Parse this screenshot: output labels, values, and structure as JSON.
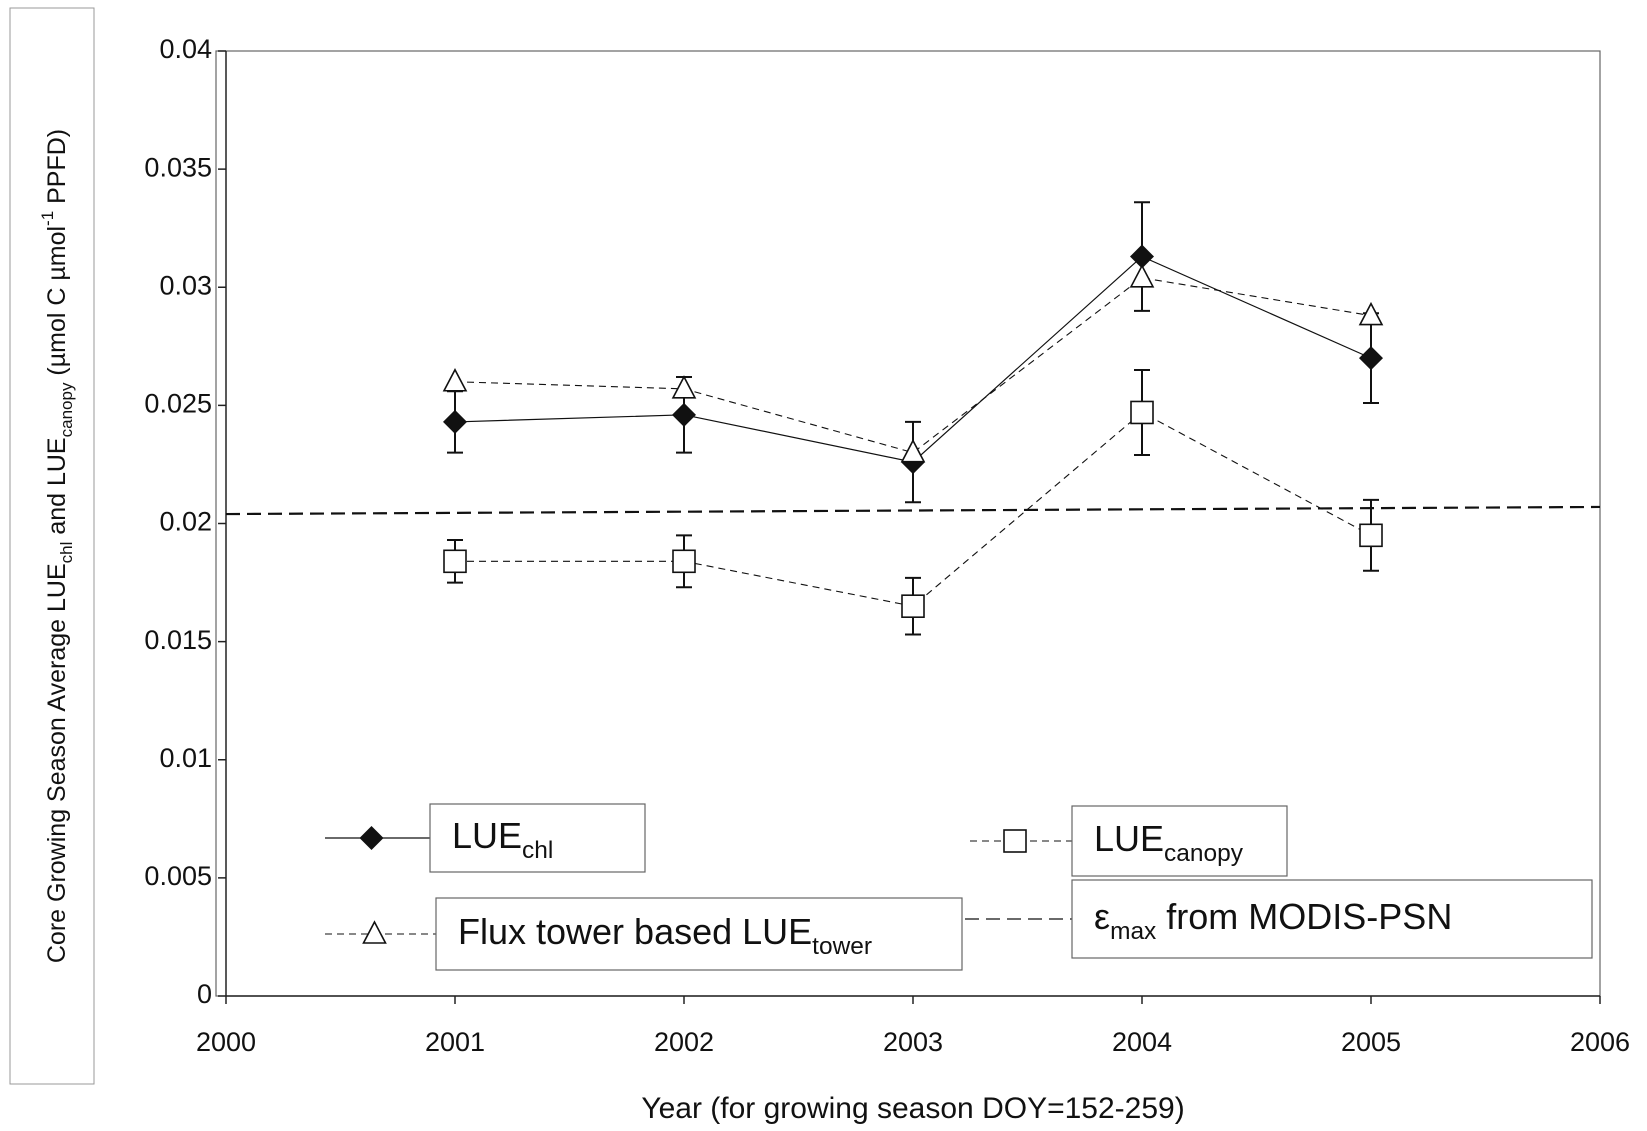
{
  "chart_data": {
    "type": "line",
    "xlabel": "Year (for growing season DOY=152-259)",
    "ylabel_parts": [
      "Core Growing Season Average LUE",
      "chl",
      " and LUE",
      "canopy",
      " (µmol C µmol",
      "-1",
      " PPFD)"
    ],
    "ylabel_styles": [
      "normal",
      "sub",
      "normal",
      "sub",
      "normal",
      "sup",
      "normal"
    ],
    "xlim": [
      2000,
      2006
    ],
    "xticks": [
      2000,
      2001,
      2002,
      2003,
      2004,
      2005,
      2006
    ],
    "ylim": [
      0,
      0.04
    ],
    "yticks": [
      0,
      0.005,
      0.01,
      0.015,
      0.02,
      0.025,
      0.03,
      0.035,
      0.04
    ],
    "grid": false,
    "legend": "bottom",
    "series": [
      {
        "name_parts": [
          "LUE",
          "chl"
        ],
        "name_styles": [
          "normal",
          "sub"
        ],
        "color": "#111111",
        "line": "solid",
        "marker": "diamond",
        "x": [
          2001,
          2002,
          2003,
          2004,
          2005
        ],
        "values": [
          0.0243,
          0.0246,
          0.0226,
          0.0313,
          0.027
        ],
        "errors": [
          0.0013,
          0.0016,
          0.0017,
          0.0023,
          0.0019
        ]
      },
      {
        "name_parts": [
          "LUE",
          "canopy"
        ],
        "name_styles": [
          "normal",
          "sub"
        ],
        "color": "#111111",
        "line": "dashed",
        "marker": "square",
        "x": [
          2001,
          2002,
          2003,
          2004,
          2005
        ],
        "values": [
          0.0184,
          0.0184,
          0.0165,
          0.0247,
          0.0195
        ],
        "errors": [
          0.0009,
          0.0011,
          0.0012,
          0.0018,
          0.0015
        ]
      },
      {
        "name_parts": [
          "Flux tower based LUE",
          "tower"
        ],
        "name_styles": [
          "normal",
          "sub"
        ],
        "color": "#111111",
        "line": "dashed",
        "marker": "triangle",
        "x": [
          2001,
          2002,
          2003,
          2004,
          2005
        ],
        "values": [
          0.026,
          0.0257,
          0.023,
          0.0304,
          0.0288
        ]
      },
      {
        "name_parts": [
          "ε",
          "max",
          " from MODIS-PSN"
        ],
        "name_styles": [
          "normal",
          "sub",
          "normal"
        ],
        "color": "#111111",
        "line": "longdash",
        "marker": "none",
        "x": [
          2000,
          2006
        ],
        "values": [
          0.0204,
          0.0207
        ]
      }
    ]
  }
}
